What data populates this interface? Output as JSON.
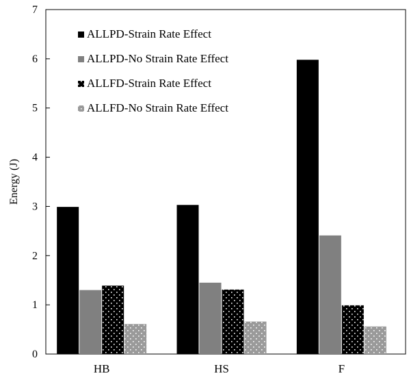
{
  "chart_data": {
    "type": "bar",
    "title": "",
    "xlabel": "",
    "ylabel": "Energy (J)",
    "ylim": [
      0,
      7
    ],
    "yticks": [
      0,
      1,
      2,
      3,
      4,
      5,
      6,
      7
    ],
    "grid": false,
    "legend_position": "top-left",
    "categories": [
      "HB",
      "HS",
      "F"
    ],
    "series": [
      {
        "name": "ALLPD-Strain Rate Effect",
        "values": [
          2.99,
          3.03,
          5.98
        ],
        "color": "#000000",
        "pattern": "solid"
      },
      {
        "name": "ALLPD-No Strain Rate Effect",
        "values": [
          1.3,
          1.45,
          2.41
        ],
        "color": "#808080",
        "pattern": "solid"
      },
      {
        "name": "ALLFD-Strain Rate Effect",
        "values": [
          1.39,
          1.31,
          0.99
        ],
        "color": "#000000",
        "pattern": "dots-white"
      },
      {
        "name": "ALLFD-No Strain Rate Effect",
        "values": [
          0.61,
          0.66,
          0.56
        ],
        "color": "#9a9a9a",
        "pattern": "dots-white"
      }
    ]
  }
}
